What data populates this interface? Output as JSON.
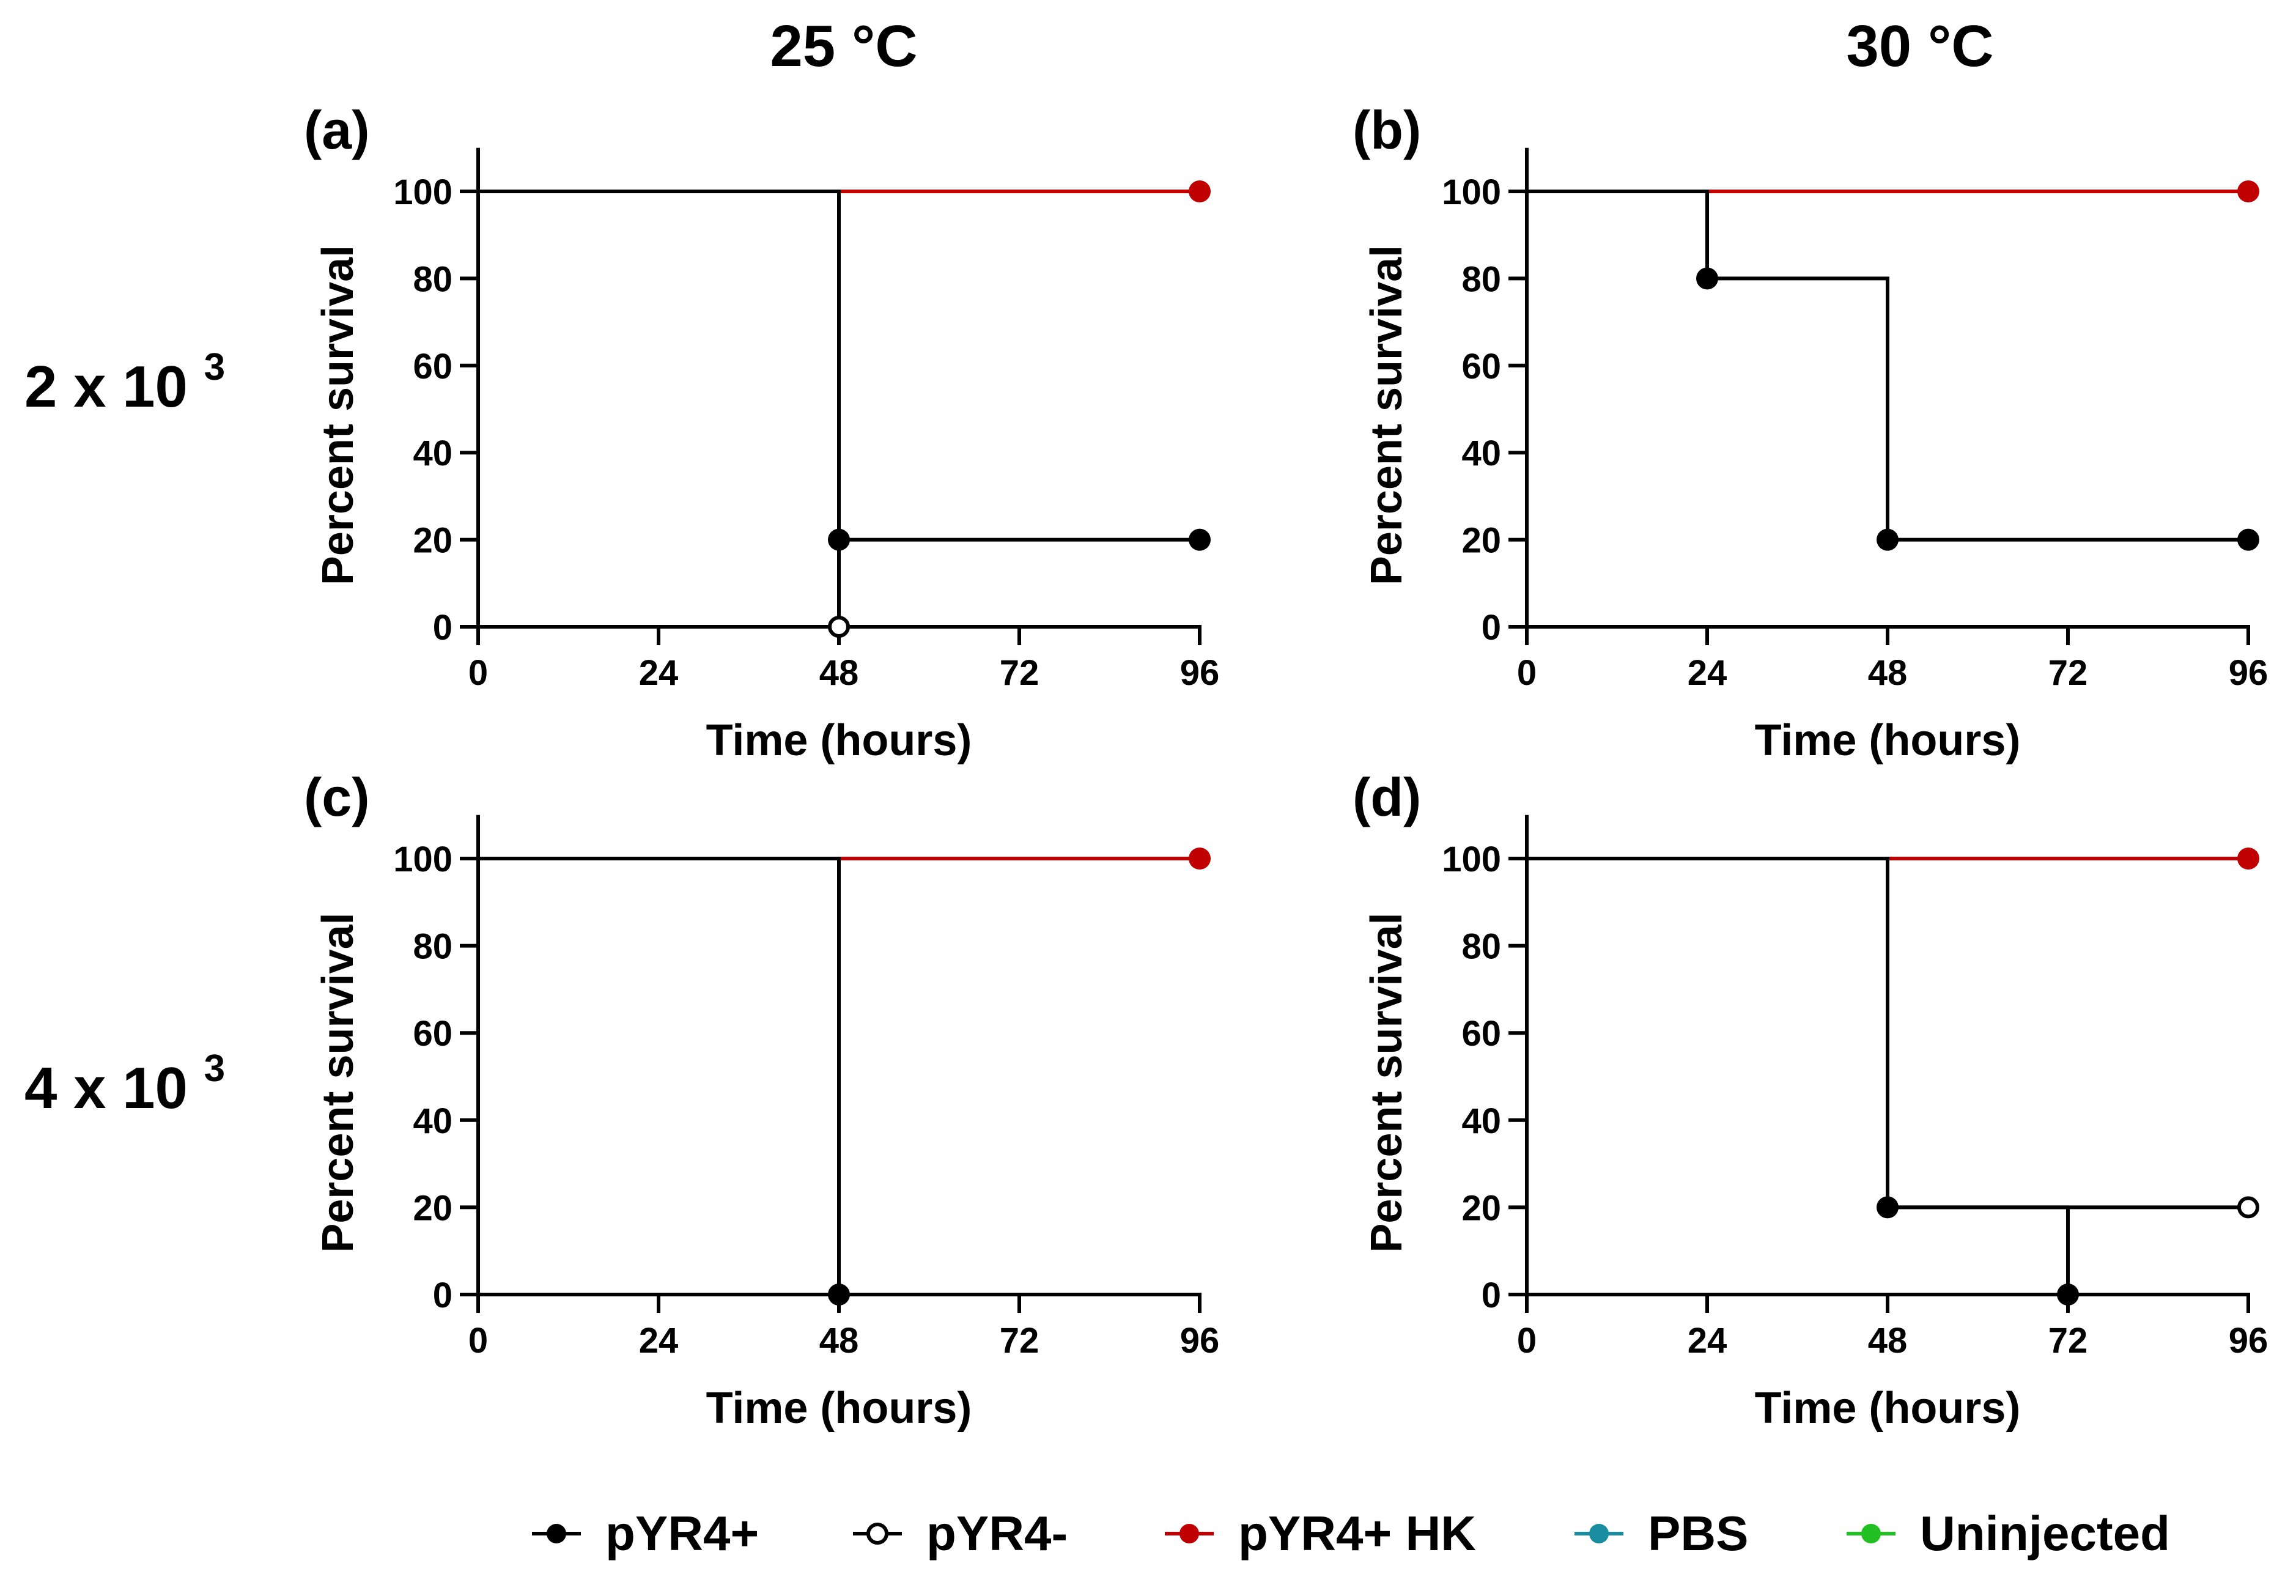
{
  "column_labels": [
    "25 °C",
    "30 °C"
  ],
  "row_labels": [
    {
      "base": "2 x 10",
      "exp": "3"
    },
    {
      "base": "4 x 10",
      "exp": "3"
    }
  ],
  "legend": [
    {
      "key": "pos",
      "label": "pYR4+",
      "color": "#000000",
      "marker": "filled"
    },
    {
      "key": "neg",
      "label": "pYR4-",
      "color": "#000000",
      "marker": "open"
    },
    {
      "key": "hk",
      "label": "pYR4+ HK",
      "color": "#c00000",
      "marker": "filled"
    },
    {
      "key": "pbs",
      "label": "PBS",
      "color": "#1a8ca0",
      "marker": "filled"
    },
    {
      "key": "un",
      "label": "Uninjected",
      "color": "#22c022",
      "marker": "filled"
    }
  ],
  "chart_data": [
    {
      "panel": "(a)",
      "type": "line",
      "step": true,
      "xlabel": "Time (hours)",
      "ylabel": "Percent survival",
      "xlim": [
        0,
        96
      ],
      "ylim": [
        0,
        110
      ],
      "xticks": [
        0,
        24,
        48,
        72,
        96
      ],
      "yticks": [
        0,
        20,
        40,
        60,
        80,
        100
      ],
      "series": [
        {
          "name": "pYR4+ HK",
          "color": "#c00000",
          "marker": "filled",
          "x": [
            0,
            96
          ],
          "y": [
            100,
            100
          ],
          "marks": [
            [
              96,
              100
            ]
          ]
        },
        {
          "name": "pYR4-",
          "color": "#000000",
          "marker": "open",
          "x": [
            0,
            48
          ],
          "y": [
            100,
            0
          ],
          "marks": [
            [
              48,
              0
            ]
          ]
        },
        {
          "name": "pYR4+",
          "color": "#000000",
          "marker": "filled",
          "x": [
            0,
            48,
            96
          ],
          "y": [
            100,
            20,
            20
          ],
          "marks": [
            [
              48,
              20
            ],
            [
              96,
              20
            ]
          ]
        }
      ]
    },
    {
      "panel": "(b)",
      "type": "line",
      "step": true,
      "xlabel": "Time (hours)",
      "ylabel": "Percent survival",
      "xlim": [
        0,
        96
      ],
      "ylim": [
        0,
        110
      ],
      "xticks": [
        0,
        24,
        48,
        72,
        96
      ],
      "yticks": [
        0,
        20,
        40,
        60,
        80,
        100
      ],
      "series": [
        {
          "name": "pYR4+ HK",
          "color": "#c00000",
          "marker": "filled",
          "x": [
            0,
            96
          ],
          "y": [
            100,
            100
          ],
          "marks": [
            [
              96,
              100
            ]
          ]
        },
        {
          "name": "pYR4+",
          "color": "#000000",
          "marker": "filled",
          "x": [
            0,
            24,
            48,
            96
          ],
          "y": [
            100,
            80,
            20,
            20
          ],
          "marks": [
            [
              24,
              80
            ],
            [
              48,
              20
            ],
            [
              96,
              20
            ]
          ]
        }
      ]
    },
    {
      "panel": "(c)",
      "type": "line",
      "step": true,
      "xlabel": "Time (hours)",
      "ylabel": "Percent survival",
      "xlim": [
        0,
        96
      ],
      "ylim": [
        0,
        110
      ],
      "xticks": [
        0,
        24,
        48,
        72,
        96
      ],
      "yticks": [
        0,
        20,
        40,
        60,
        80,
        100
      ],
      "series": [
        {
          "name": "pYR4+ HK",
          "color": "#c00000",
          "marker": "filled",
          "x": [
            0,
            96
          ],
          "y": [
            100,
            100
          ],
          "marks": [
            [
              96,
              100
            ]
          ]
        },
        {
          "name": "pYR4+",
          "color": "#000000",
          "marker": "filled",
          "x": [
            0,
            48
          ],
          "y": [
            100,
            0
          ],
          "marks": [
            [
              48,
              0
            ]
          ]
        }
      ]
    },
    {
      "panel": "(d)",
      "type": "line",
      "step": true,
      "xlabel": "Time (hours)",
      "ylabel": "Percent survival",
      "xlim": [
        0,
        96
      ],
      "ylim": [
        0,
        110
      ],
      "xticks": [
        0,
        24,
        48,
        72,
        96
      ],
      "yticks": [
        0,
        20,
        40,
        60,
        80,
        100
      ],
      "series": [
        {
          "name": "pYR4+ HK",
          "color": "#c00000",
          "marker": "filled",
          "x": [
            0,
            96
          ],
          "y": [
            100,
            100
          ],
          "marks": [
            [
              96,
              100
            ]
          ]
        },
        {
          "name": "pYR4-",
          "color": "#000000",
          "marker": "open",
          "x": [
            0,
            48,
            96
          ],
          "y": [
            100,
            20,
            20
          ],
          "marks": [
            [
              96,
              20
            ]
          ]
        },
        {
          "name": "pYR4+",
          "color": "#000000",
          "marker": "filled",
          "x": [
            0,
            48,
            72
          ],
          "y": [
            100,
            20,
            0
          ],
          "marks": [
            [
              48,
              20
            ],
            [
              72,
              0
            ]
          ]
        }
      ]
    }
  ]
}
